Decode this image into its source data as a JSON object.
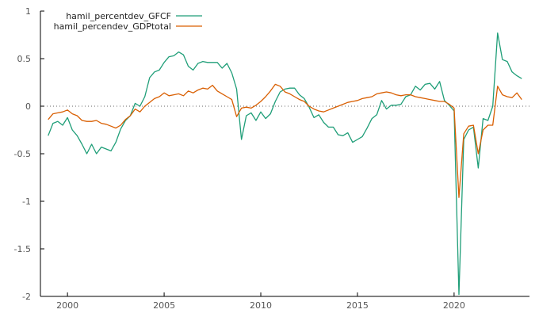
{
  "chart_data": {
    "type": "line",
    "title": "",
    "xlabel": "",
    "ylabel": "",
    "xlim": [
      1998.6,
      2023.9
    ],
    "ylim": [
      -2,
      1
    ],
    "grid": false,
    "zero_line": "dotted",
    "legend_position": "top-left",
    "x_ticks": [
      2000,
      2005,
      2010,
      2015,
      2020
    ],
    "x_tick_labels": [
      "2000",
      "2005",
      "2010",
      "2015",
      "2020"
    ],
    "y_ticks": [
      1,
      0.5,
      0,
      -0.5,
      -1,
      -1.5,
      -2
    ],
    "y_tick_labels": [
      "1",
      "0.5",
      "0",
      "-0.5",
      "-1",
      "-1.5",
      "-2"
    ],
    "x_start": 1999.0,
    "x_step": 0.25,
    "series": [
      {
        "name": "hamil_percentdev_GFCF",
        "color": "#1f9e78",
        "values": [
          -0.31,
          -0.18,
          -0.16,
          -0.2,
          -0.12,
          -0.25,
          -0.31,
          -0.4,
          -0.5,
          -0.4,
          -0.5,
          -0.43,
          -0.45,
          -0.47,
          -0.38,
          -0.24,
          -0.15,
          -0.1,
          0.03,
          0.0,
          0.1,
          0.3,
          0.36,
          0.38,
          0.46,
          0.52,
          0.53,
          0.57,
          0.54,
          0.42,
          0.38,
          0.45,
          0.47,
          0.46,
          0.46,
          0.46,
          0.4,
          0.45,
          0.35,
          0.18,
          -0.35,
          -0.1,
          -0.07,
          -0.15,
          -0.06,
          -0.13,
          -0.08,
          0.05,
          0.15,
          0.18,
          0.19,
          0.19,
          0.12,
          0.08,
          -0.01,
          -0.12,
          -0.09,
          -0.17,
          -0.22,
          -0.22,
          -0.3,
          -0.31,
          -0.28,
          -0.38,
          -0.35,
          -0.32,
          -0.23,
          -0.13,
          -0.09,
          0.06,
          -0.03,
          0.01,
          0.01,
          0.02,
          0.1,
          0.12,
          0.21,
          0.17,
          0.23,
          0.24,
          0.18,
          0.26,
          0.06,
          0.01,
          -0.05,
          -1.98,
          -0.35,
          -0.25,
          -0.22,
          -0.65,
          -0.13,
          -0.15,
          0.0,
          0.77,
          0.49,
          0.47,
          0.36,
          0.32,
          0.29
        ]
      },
      {
        "name": "hamil_percendev_GDPtotal",
        "color": "#d95f02",
        "values": [
          -0.14,
          -0.08,
          -0.07,
          -0.06,
          -0.04,
          -0.08,
          -0.1,
          -0.15,
          -0.16,
          -0.16,
          -0.15,
          -0.18,
          -0.19,
          -0.21,
          -0.23,
          -0.2,
          -0.14,
          -0.1,
          -0.03,
          -0.06,
          0.0,
          0.04,
          0.08,
          0.1,
          0.14,
          0.11,
          0.12,
          0.13,
          0.11,
          0.16,
          0.14,
          0.17,
          0.19,
          0.18,
          0.22,
          0.16,
          0.13,
          0.1,
          0.07,
          -0.11,
          -0.02,
          -0.01,
          -0.02,
          0.01,
          0.05,
          0.1,
          0.16,
          0.23,
          0.21,
          0.15,
          0.13,
          0.1,
          0.07,
          0.05,
          0.0,
          -0.03,
          -0.05,
          -0.06,
          -0.04,
          -0.02,
          0.0,
          0.02,
          0.04,
          0.05,
          0.06,
          0.08,
          0.09,
          0.1,
          0.13,
          0.14,
          0.15,
          0.14,
          0.12,
          0.11,
          0.12,
          0.12,
          0.1,
          0.09,
          0.08,
          0.07,
          0.06,
          0.05,
          0.05,
          0.02,
          -0.02,
          -0.96,
          -0.29,
          -0.21,
          -0.2,
          -0.5,
          -0.25,
          -0.2,
          -0.2,
          0.21,
          0.12,
          0.1,
          0.09,
          0.14,
          0.07
        ]
      }
    ]
  }
}
